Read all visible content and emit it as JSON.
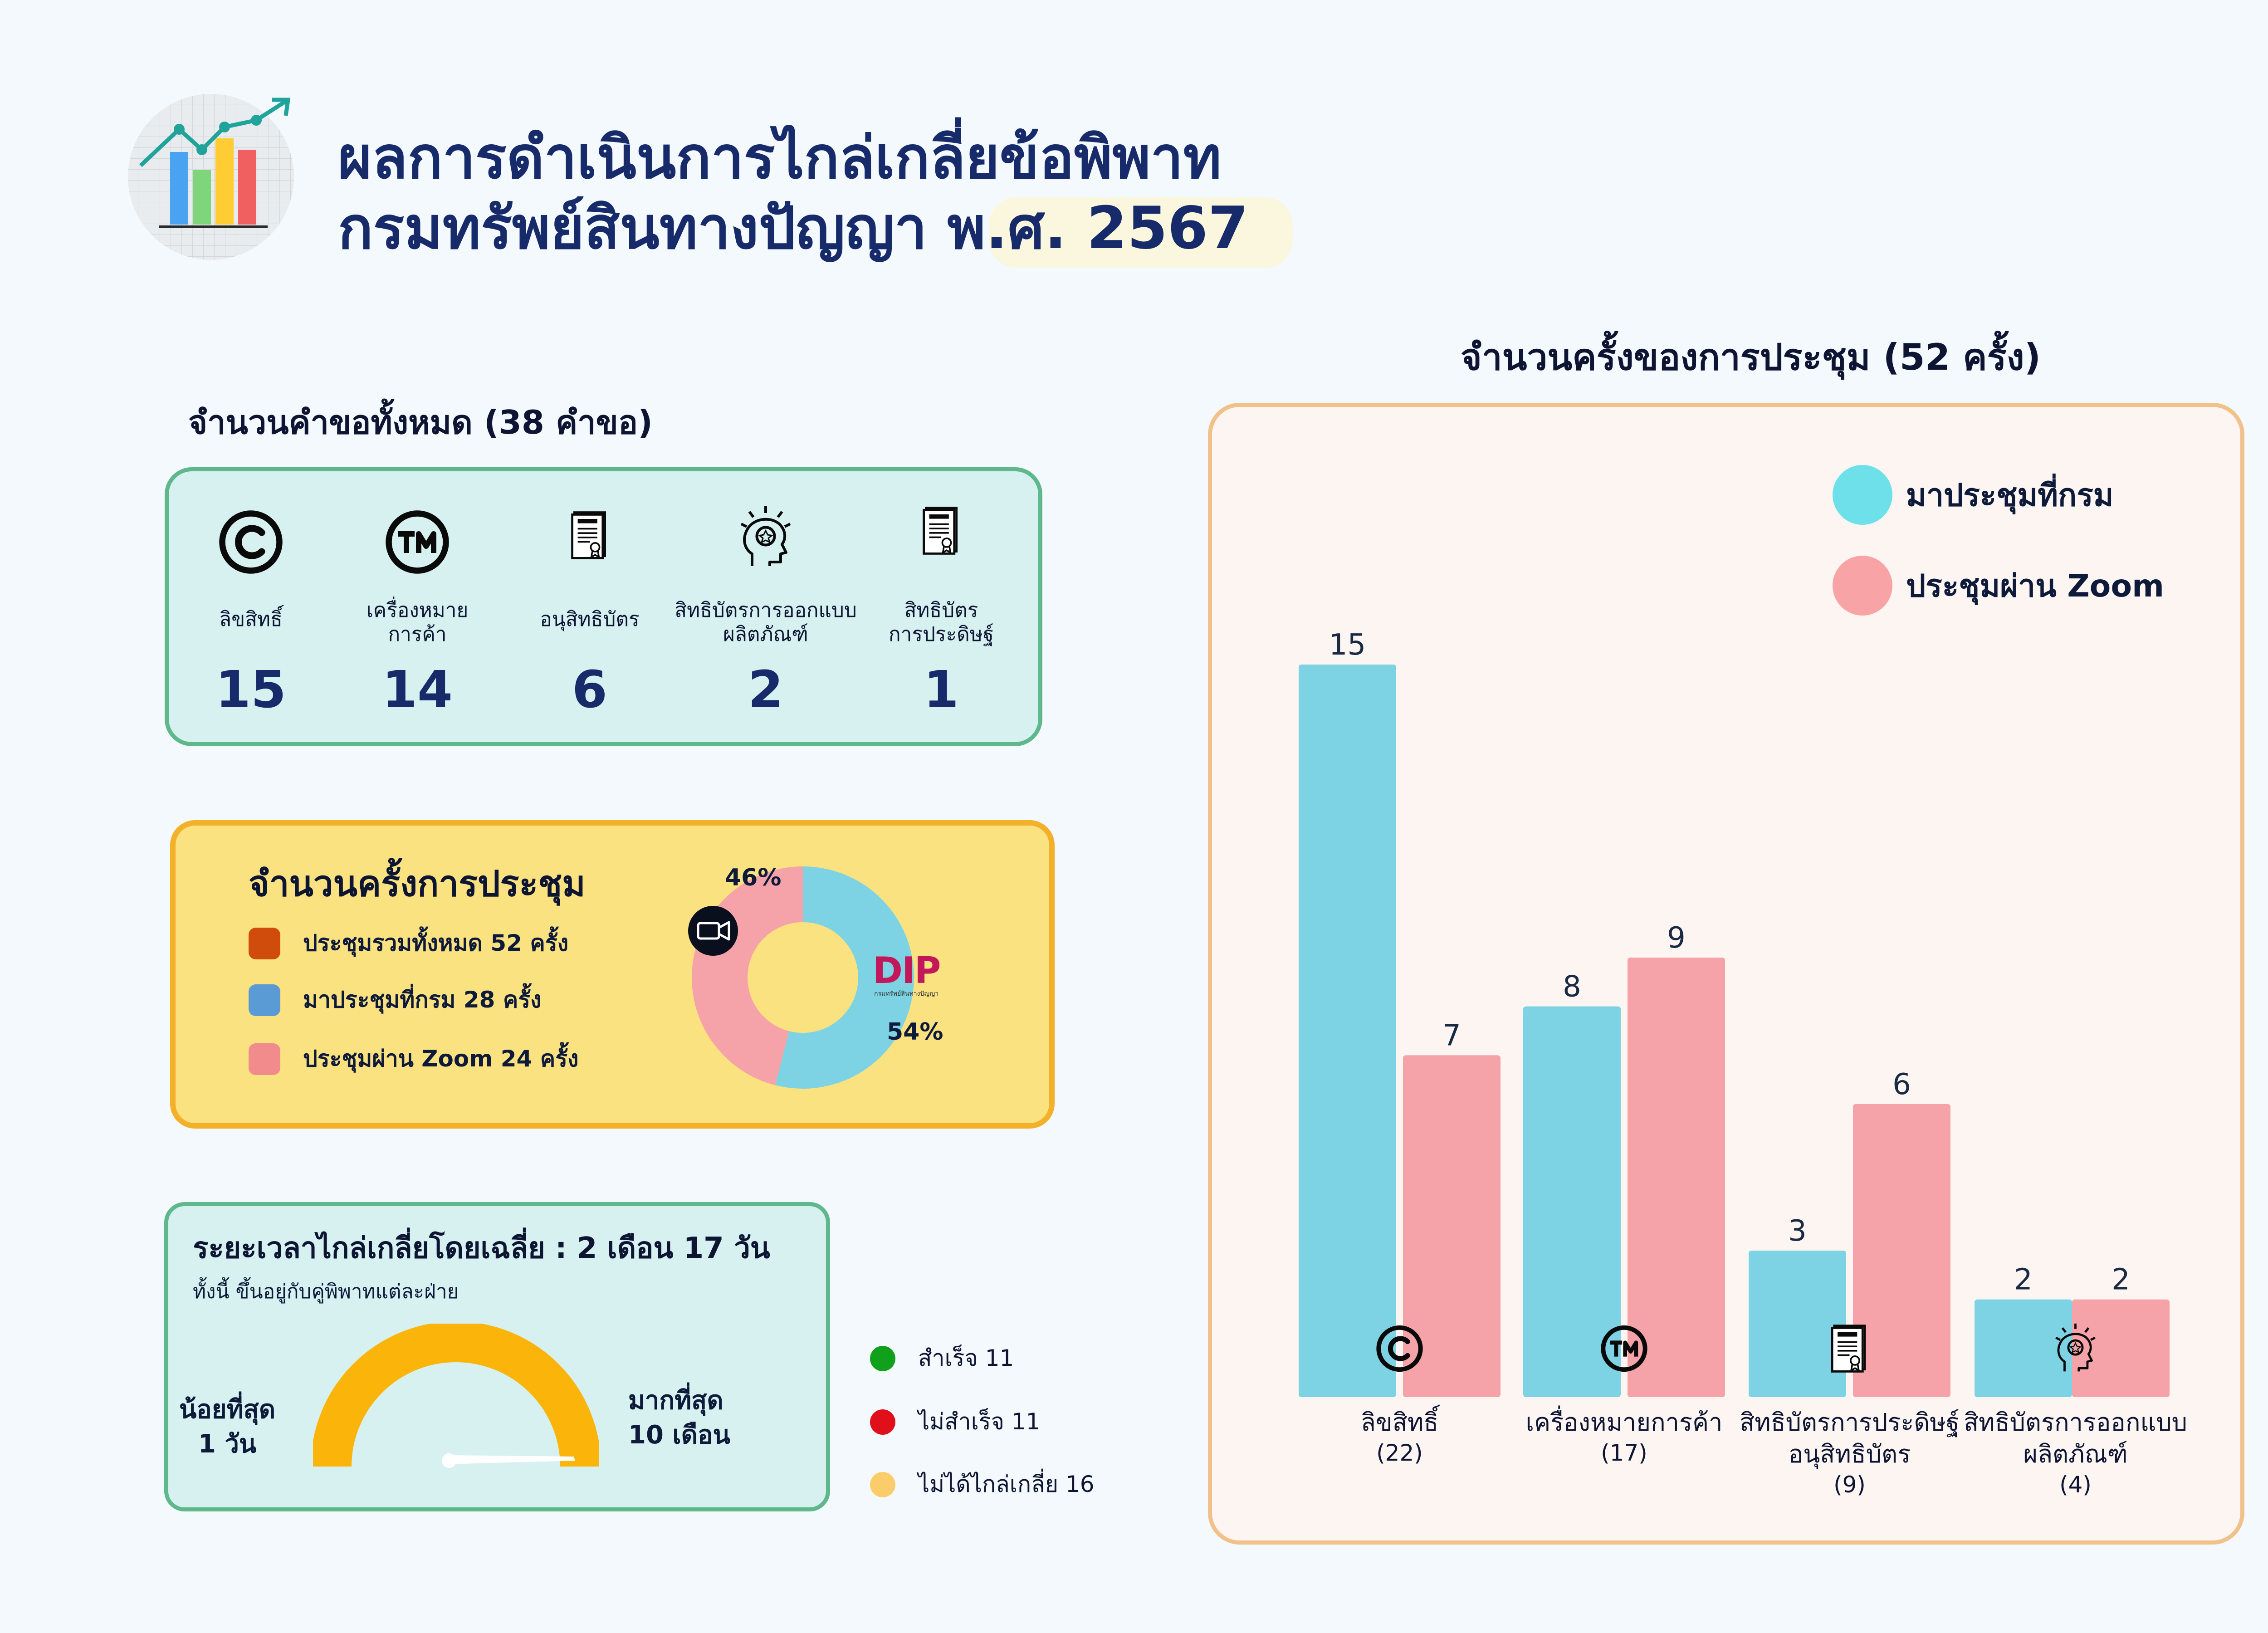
{
  "header": {
    "title_line1": "ผลการดำเนินการไกล่เกลี่ยข้อพิพาท",
    "title_line2": "กรมทรัพย์สินทางปัญญา พ.ศ. 2567"
  },
  "requests": {
    "heading": "จำนวนคำขอทั้งหมด (38 คำขอ)",
    "items": [
      {
        "label": "ลิขสิทธิ์",
        "value": "15",
        "icon": "copyright-icon"
      },
      {
        "label": "เครื่องหมาย\nการค้า",
        "value": "14",
        "icon": "trademark-icon"
      },
      {
        "label": "อนุสิทธิบัตร",
        "value": "6",
        "icon": "patent-document-icon"
      },
      {
        "label": "สิทธิบัตรการออกแบบ\nผลิตภัณฑ์",
        "value": "2",
        "icon": "idea-head-icon"
      },
      {
        "label": "สิทธิบัตร\nการประดิษฐ์",
        "value": "1",
        "icon": "patent-document-icon"
      }
    ]
  },
  "meetings": {
    "heading": "จำนวนครั้งการประชุม",
    "legend": [
      {
        "label": "ประชุมรวมทั้งหมด  52 ครั้ง",
        "color": "#d04c0c"
      },
      {
        "label": "มาประชุมที่กรม 28 ครั้ง",
        "color": "#5b9bd5"
      },
      {
        "label": "ประชุมผ่าน Zoom 24 ครั้ง",
        "color": "#f28b8b"
      }
    ],
    "donut": {
      "slices": [
        {
          "name": "มาประชุมที่กรม",
          "value": 54,
          "label": "54%",
          "color": "#7dd3e3"
        },
        {
          "name": "ประชุมผ่าน Zoom",
          "value": 46,
          "label": "46%",
          "color": "#f5a3a8"
        }
      ]
    },
    "logo_text": "DIP",
    "logo_sub": "กรมทรัพย์สินทางปัญญา"
  },
  "duration": {
    "heading": "ระยะเวลาไกล่เกลี่ยโดยเฉลี่ย  : 2 เดือน 17 วัน",
    "subheading": "ทั้งนี้ ขึ้นอยู่กับคู่พิพาทแต่ละฝ่าย",
    "min_label": "น้อยที่สุด",
    "min_value": "1 วัน",
    "max_label": "มากที่สุด",
    "max_value": "10 เดือน",
    "gauge_color": "#fbb40a"
  },
  "outcomes": [
    {
      "label": "สำเร็จ 11",
      "color": "#10a01c"
    },
    {
      "label": "ไม่สำเร็จ 11",
      "color": "#e0101a"
    },
    {
      "label": "ไม่ได้ไกล่เกลี่ย 16",
      "color": "#fbcd6a"
    }
  ],
  "chart_panel": {
    "heading": "จำนวนครั้งของการประชุม (52 ครั้ง)"
  },
  "chart_data": {
    "type": "bar",
    "title": "จำนวนครั้งของการประชุม (52 ครั้ง)",
    "categories": [
      {
        "name": "ลิขสิทธิ์",
        "sub": "",
        "total": "(22)",
        "icon": "copyright-icon"
      },
      {
        "name": "เครื่องหมายการค้า",
        "sub": "",
        "total": "(17)",
        "icon": "trademark-icon"
      },
      {
        "name": "สิทธิบัตรการประดิษฐ์",
        "sub": "อนุสิทธิบัตร",
        "total": "(9)",
        "icon": "patent-document-icon"
      },
      {
        "name": "สิทธิบัตรการออกแบบ",
        "sub": "ผลิตภัณฑ์",
        "total": "(4)",
        "icon": "idea-head-icon"
      }
    ],
    "series": [
      {
        "name": "มาประชุมที่กรม",
        "values": [
          15,
          8,
          3,
          2
        ],
        "color": "#7dd3e3"
      },
      {
        "name": "ประชุมผ่าน Zoom",
        "values": [
          7,
          9,
          6,
          2
        ],
        "color": "#f5a3a8"
      }
    ],
    "ylim": [
      0,
      15
    ],
    "legend_position": "top-right",
    "grid": false
  }
}
